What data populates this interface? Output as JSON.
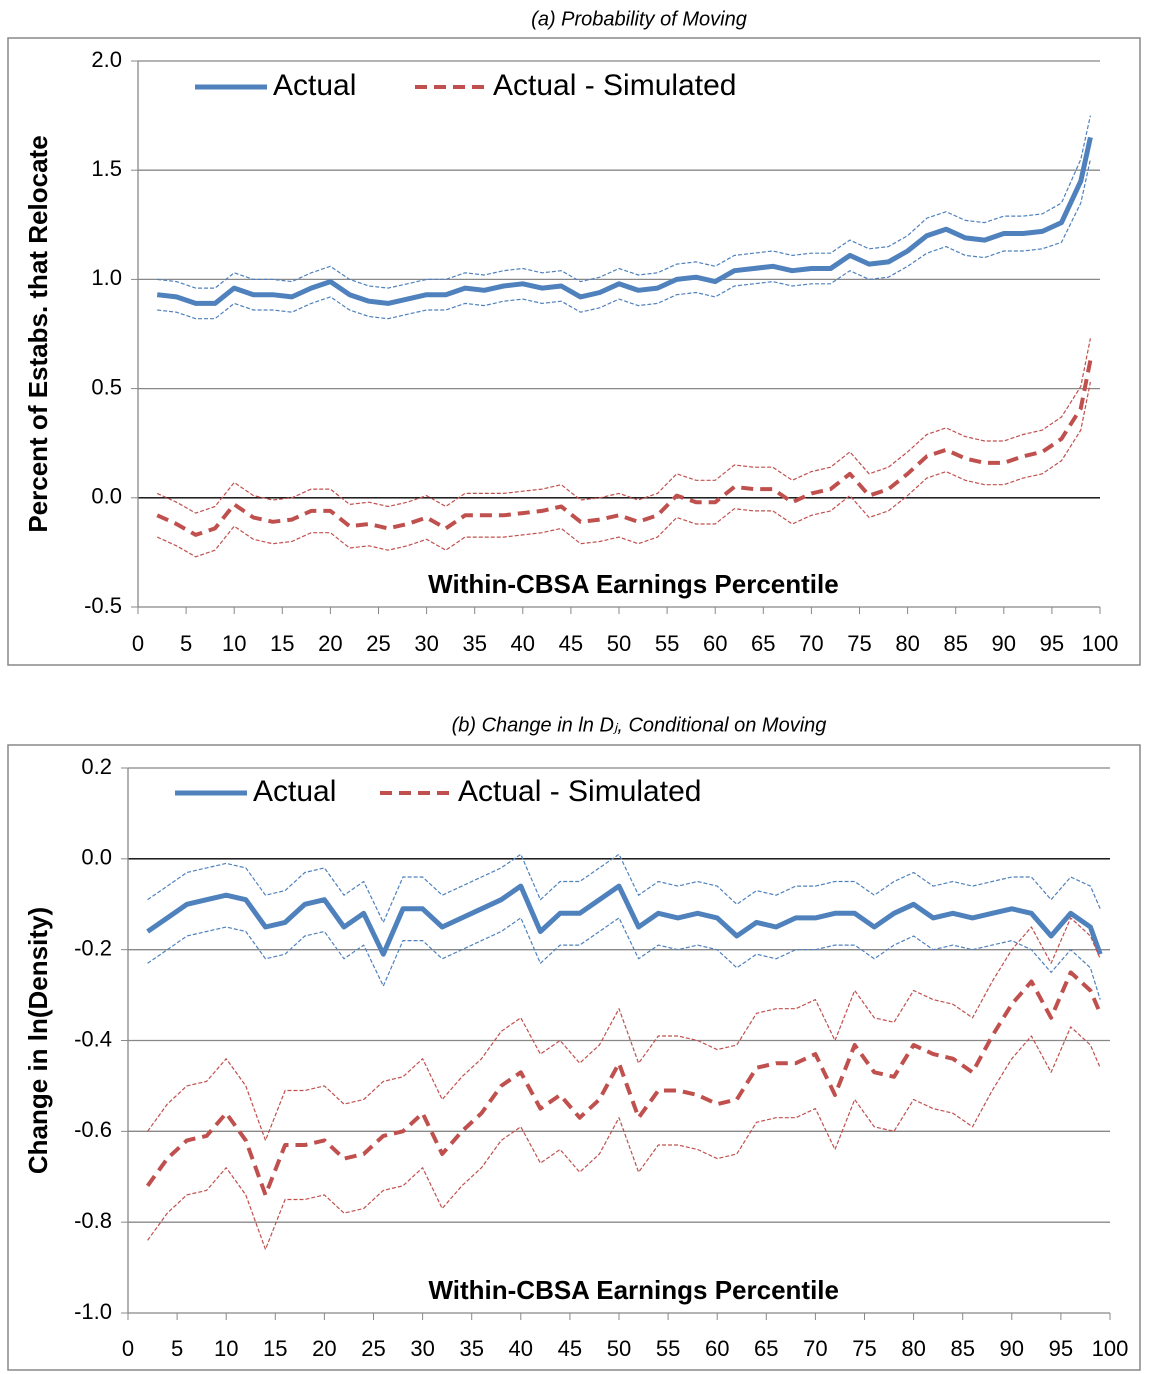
{
  "chart_data": [
    {
      "type": "line",
      "title": "(a) Probability of Moving",
      "ylabel": "Percent of Estabs. that Relocate",
      "xlabel": "Within-CBSA Earnings Percentile",
      "x": [
        2,
        4,
        6,
        8,
        10,
        12,
        14,
        16,
        18,
        20,
        22,
        24,
        26,
        28,
        30,
        32,
        34,
        36,
        38,
        40,
        42,
        44,
        46,
        48,
        50,
        52,
        54,
        56,
        58,
        60,
        62,
        64,
        66,
        68,
        70,
        72,
        74,
        76,
        78,
        80,
        82,
        84,
        86,
        88,
        90,
        92,
        94,
        96,
        98,
        99
      ],
      "xlim": [
        0,
        100
      ],
      "xticks": [
        0,
        5,
        10,
        15,
        20,
        25,
        30,
        35,
        40,
        45,
        50,
        55,
        60,
        65,
        70,
        75,
        80,
        85,
        90,
        95,
        100
      ],
      "ylim": [
        -0.5,
        2
      ],
      "yticks": [
        -0.5,
        {
          "value": 0,
          "label": "0.0"
        },
        0.5,
        {
          "value": 1,
          "label": "1.0"
        },
        1.5,
        {
          "value": 2,
          "label": "2.0"
        }
      ],
      "grid": true,
      "zero_line": true,
      "series": [
        {
          "name": "Actual",
          "color": "#4f81bd",
          "style": "solid",
          "values": [
            0.93,
            0.92,
            0.89,
            0.89,
            0.96,
            0.93,
            0.93,
            0.92,
            0.96,
            0.99,
            0.93,
            0.9,
            0.89,
            0.91,
            0.93,
            0.93,
            0.96,
            0.95,
            0.97,
            0.98,
            0.96,
            0.97,
            0.92,
            0.94,
            0.98,
            0.95,
            0.96,
            1.0,
            1.01,
            0.99,
            1.04,
            1.05,
            1.06,
            1.04,
            1.05,
            1.05,
            1.11,
            1.07,
            1.08,
            1.13,
            1.2,
            1.23,
            1.19,
            1.18,
            1.21,
            1.21,
            1.22,
            1.26,
            1.45,
            1.65
          ]
        },
        {
          "color": "#4f81bd",
          "style": "ci",
          "values": [
            1.0,
            0.99,
            0.96,
            0.96,
            1.03,
            1.0,
            1.0,
            0.99,
            1.03,
            1.06,
            1.0,
            0.97,
            0.96,
            0.98,
            1.0,
            1.0,
            1.03,
            1.02,
            1.04,
            1.05,
            1.03,
            1.04,
            0.99,
            1.01,
            1.05,
            1.02,
            1.03,
            1.07,
            1.08,
            1.06,
            1.11,
            1.12,
            1.13,
            1.11,
            1.12,
            1.12,
            1.18,
            1.14,
            1.15,
            1.2,
            1.28,
            1.31,
            1.27,
            1.26,
            1.29,
            1.29,
            1.3,
            1.35,
            1.55,
            1.75
          ]
        },
        {
          "color": "#4f81bd",
          "style": "ci",
          "values": [
            0.86,
            0.85,
            0.82,
            0.82,
            0.89,
            0.86,
            0.86,
            0.85,
            0.89,
            0.92,
            0.86,
            0.83,
            0.82,
            0.84,
            0.86,
            0.86,
            0.89,
            0.88,
            0.9,
            0.91,
            0.89,
            0.9,
            0.85,
            0.87,
            0.91,
            0.88,
            0.89,
            0.93,
            0.94,
            0.92,
            0.97,
            0.98,
            0.99,
            0.97,
            0.98,
            0.98,
            1.04,
            1.0,
            1.01,
            1.06,
            1.12,
            1.15,
            1.11,
            1.1,
            1.13,
            1.13,
            1.14,
            1.17,
            1.35,
            1.55
          ]
        },
        {
          "name": "Actual - Simulated",
          "color": "#c0504d",
          "style": "dashed",
          "values": [
            -0.08,
            -0.12,
            -0.17,
            -0.14,
            -0.03,
            -0.09,
            -0.11,
            -0.1,
            -0.06,
            -0.06,
            -0.13,
            -0.12,
            -0.14,
            -0.12,
            -0.09,
            -0.14,
            -0.08,
            -0.08,
            -0.08,
            -0.07,
            -0.06,
            -0.04,
            -0.11,
            -0.1,
            -0.08,
            -0.11,
            -0.08,
            0.01,
            -0.02,
            -0.02,
            0.05,
            0.04,
            0.04,
            -0.02,
            0.02,
            0.04,
            0.11,
            0.01,
            0.04,
            0.11,
            0.19,
            0.22,
            0.18,
            0.16,
            0.16,
            0.19,
            0.21,
            0.27,
            0.41,
            0.63
          ]
        },
        {
          "color": "#c0504d",
          "style": "ci",
          "values": [
            0.02,
            -0.02,
            -0.07,
            -0.04,
            0.07,
            0.01,
            -0.01,
            0.0,
            0.04,
            0.04,
            -0.03,
            -0.02,
            -0.04,
            -0.02,
            0.01,
            -0.04,
            0.02,
            0.02,
            0.02,
            0.03,
            0.04,
            0.06,
            -0.01,
            0.0,
            0.02,
            -0.01,
            0.02,
            0.11,
            0.08,
            0.08,
            0.15,
            0.14,
            0.14,
            0.08,
            0.12,
            0.14,
            0.21,
            0.11,
            0.14,
            0.21,
            0.29,
            0.32,
            0.28,
            0.26,
            0.26,
            0.29,
            0.31,
            0.37,
            0.51,
            0.73
          ]
        },
        {
          "color": "#c0504d",
          "style": "ci",
          "values": [
            -0.18,
            -0.22,
            -0.27,
            -0.24,
            -0.13,
            -0.19,
            -0.21,
            -0.2,
            -0.16,
            -0.16,
            -0.23,
            -0.22,
            -0.24,
            -0.22,
            -0.19,
            -0.24,
            -0.18,
            -0.18,
            -0.18,
            -0.17,
            -0.16,
            -0.14,
            -0.21,
            -0.2,
            -0.18,
            -0.21,
            -0.18,
            -0.09,
            -0.12,
            -0.12,
            -0.05,
            -0.06,
            -0.06,
            -0.12,
            -0.08,
            -0.06,
            0.01,
            -0.09,
            -0.06,
            0.01,
            0.09,
            0.12,
            0.08,
            0.06,
            0.06,
            0.09,
            0.11,
            0.17,
            0.31,
            0.53
          ]
        }
      ]
    },
    {
      "type": "line",
      "title": "(b) Change in ln Dⱼ, Conditional on Moving",
      "ylabel": "Change in ln(Density)",
      "xlabel": "Within-CBSA Earnings Percentile",
      "x": [
        2,
        4,
        6,
        8,
        10,
        12,
        14,
        16,
        18,
        20,
        22,
        24,
        26,
        28,
        30,
        32,
        34,
        36,
        38,
        40,
        42,
        44,
        46,
        48,
        50,
        52,
        54,
        56,
        58,
        60,
        62,
        64,
        66,
        68,
        70,
        72,
        74,
        76,
        78,
        80,
        82,
        84,
        86,
        88,
        90,
        92,
        94,
        96,
        98,
        99
      ],
      "xlim": [
        0,
        100
      ],
      "xticks": [
        0,
        5,
        10,
        15,
        20,
        25,
        30,
        35,
        40,
        45,
        50,
        55,
        60,
        65,
        70,
        75,
        80,
        85,
        90,
        95,
        100
      ],
      "ylim": [
        -1,
        0.2
      ],
      "yticks": [
        {
          "value": -1,
          "label": "-1.0"
        },
        -0.8,
        -0.6,
        -0.4,
        -0.2,
        {
          "value": 0,
          "label": "0.0"
        },
        0.2
      ],
      "grid": true,
      "zero_line": true,
      "series": [
        {
          "name": "Actual",
          "color": "#4f81bd",
          "style": "solid",
          "values": [
            -0.16,
            -0.13,
            -0.1,
            -0.09,
            -0.08,
            -0.09,
            -0.15,
            -0.14,
            -0.1,
            -0.09,
            -0.15,
            -0.12,
            -0.21,
            -0.11,
            -0.11,
            -0.15,
            -0.13,
            -0.11,
            -0.09,
            -0.06,
            -0.16,
            -0.12,
            -0.12,
            -0.09,
            -0.06,
            -0.15,
            -0.12,
            -0.13,
            -0.12,
            -0.13,
            -0.17,
            -0.14,
            -0.15,
            -0.13,
            -0.13,
            -0.12,
            -0.12,
            -0.15,
            -0.12,
            -0.1,
            -0.13,
            -0.12,
            -0.13,
            -0.12,
            -0.11,
            -0.12,
            -0.17,
            -0.12,
            -0.15,
            -0.21
          ]
        },
        {
          "color": "#4f81bd",
          "style": "ci",
          "values": [
            -0.09,
            -0.06,
            -0.03,
            -0.02,
            -0.01,
            -0.02,
            -0.08,
            -0.07,
            -0.03,
            -0.02,
            -0.08,
            -0.05,
            -0.14,
            -0.04,
            -0.04,
            -0.08,
            -0.06,
            -0.04,
            -0.02,
            0.01,
            -0.09,
            -0.05,
            -0.05,
            -0.02,
            0.01,
            -0.08,
            -0.05,
            -0.06,
            -0.05,
            -0.06,
            -0.1,
            -0.07,
            -0.08,
            -0.06,
            -0.06,
            -0.05,
            -0.05,
            -0.08,
            -0.05,
            -0.03,
            -0.06,
            -0.05,
            -0.06,
            -0.05,
            -0.04,
            -0.04,
            -0.09,
            -0.04,
            -0.06,
            -0.11
          ]
        },
        {
          "color": "#4f81bd",
          "style": "ci",
          "values": [
            -0.23,
            -0.2,
            -0.17,
            -0.16,
            -0.15,
            -0.16,
            -0.22,
            -0.21,
            -0.17,
            -0.16,
            -0.22,
            -0.19,
            -0.28,
            -0.18,
            -0.18,
            -0.22,
            -0.2,
            -0.18,
            -0.16,
            -0.13,
            -0.23,
            -0.19,
            -0.19,
            -0.16,
            -0.13,
            -0.22,
            -0.19,
            -0.2,
            -0.19,
            -0.2,
            -0.24,
            -0.21,
            -0.22,
            -0.2,
            -0.2,
            -0.19,
            -0.19,
            -0.22,
            -0.19,
            -0.17,
            -0.2,
            -0.19,
            -0.2,
            -0.19,
            -0.18,
            -0.2,
            -0.25,
            -0.2,
            -0.24,
            -0.31
          ]
        },
        {
          "name": "Actual - Simulated",
          "color": "#c0504d",
          "style": "dashed",
          "values": [
            -0.72,
            -0.66,
            -0.62,
            -0.61,
            -0.56,
            -0.62,
            -0.74,
            -0.63,
            -0.63,
            -0.62,
            -0.66,
            -0.65,
            -0.61,
            -0.6,
            -0.56,
            -0.65,
            -0.6,
            -0.56,
            -0.5,
            -0.47,
            -0.55,
            -0.52,
            -0.57,
            -0.53,
            -0.45,
            -0.57,
            -0.51,
            -0.51,
            -0.52,
            -0.54,
            -0.53,
            -0.46,
            -0.45,
            -0.45,
            -0.43,
            -0.52,
            -0.41,
            -0.47,
            -0.48,
            -0.41,
            -0.43,
            -0.44,
            -0.47,
            -0.39,
            -0.32,
            -0.27,
            -0.35,
            -0.25,
            -0.29,
            -0.34
          ]
        },
        {
          "color": "#c0504d",
          "style": "ci",
          "values": [
            -0.6,
            -0.54,
            -0.5,
            -0.49,
            -0.44,
            -0.5,
            -0.62,
            -0.51,
            -0.51,
            -0.5,
            -0.54,
            -0.53,
            -0.49,
            -0.48,
            -0.44,
            -0.53,
            -0.48,
            -0.44,
            -0.38,
            -0.35,
            -0.43,
            -0.4,
            -0.45,
            -0.41,
            -0.33,
            -0.45,
            -0.39,
            -0.39,
            -0.4,
            -0.42,
            -0.41,
            -0.34,
            -0.33,
            -0.33,
            -0.31,
            -0.4,
            -0.29,
            -0.35,
            -0.36,
            -0.29,
            -0.31,
            -0.32,
            -0.35,
            -0.27,
            -0.2,
            -0.15,
            -0.23,
            -0.13,
            -0.17,
            -0.22
          ]
        },
        {
          "color": "#c0504d",
          "style": "ci",
          "values": [
            -0.84,
            -0.78,
            -0.74,
            -0.73,
            -0.68,
            -0.74,
            -0.86,
            -0.75,
            -0.75,
            -0.74,
            -0.78,
            -0.77,
            -0.73,
            -0.72,
            -0.68,
            -0.77,
            -0.72,
            -0.68,
            -0.62,
            -0.59,
            -0.67,
            -0.64,
            -0.69,
            -0.65,
            -0.57,
            -0.69,
            -0.63,
            -0.63,
            -0.64,
            -0.66,
            -0.65,
            -0.58,
            -0.57,
            -0.57,
            -0.55,
            -0.64,
            -0.53,
            -0.59,
            -0.6,
            -0.53,
            -0.55,
            -0.56,
            -0.59,
            -0.51,
            -0.44,
            -0.39,
            -0.47,
            -0.37,
            -0.41,
            -0.46
          ]
        }
      ]
    }
  ]
}
